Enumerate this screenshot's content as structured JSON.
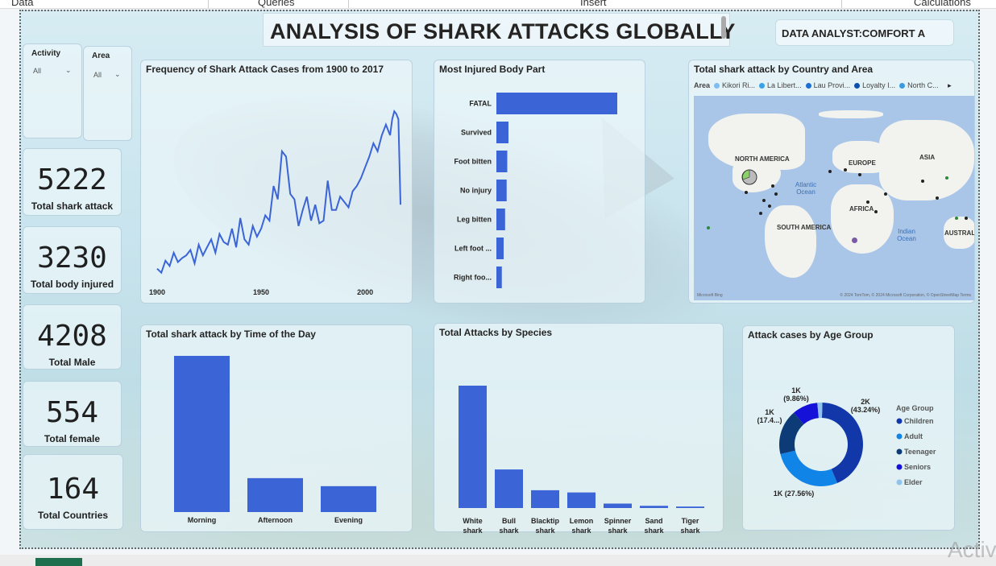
{
  "ribbon": {
    "items": [
      "Data",
      "Queries",
      "Insert",
      "Calculations"
    ]
  },
  "title": "ANALYSIS OF SHARK ATTACKS GLOBALLY",
  "analyst": "DATA ANALYST:COMFORT A",
  "slicers": [
    {
      "label": "Activity",
      "value": "All"
    },
    {
      "label": "Area",
      "value": "All"
    }
  ],
  "cards": [
    {
      "value": "5222",
      "label": "Total shark attack"
    },
    {
      "value": "3230",
      "label": "Total body injured"
    },
    {
      "value": "4208",
      "label": "Total Male"
    },
    {
      "value": "554",
      "label": "Total female"
    },
    {
      "value": "164",
      "label": "Total Countries"
    }
  ],
  "line_chart": {
    "title": "Frequency of Shark Attack Cases from 1900 to 2017"
  },
  "body_part_chart": {
    "title": "Most Injured Body Part"
  },
  "map_panel": {
    "title": "Total shark attack by Country and Area",
    "legend_title": "Area",
    "legend": [
      {
        "name": "Kikori Ri...",
        "color": "#7fbdf0"
      },
      {
        "name": "La Libert...",
        "color": "#3aa0e8"
      },
      {
        "name": "Lau Provi...",
        "color": "#1e6fd6"
      },
      {
        "name": "Loyalty I...",
        "color": "#0e4fb0"
      },
      {
        "name": "North C...",
        "color": "#3a9ae0"
      }
    ],
    "labels": {
      "na": "NORTH AMERICA",
      "eu": "EUROPE",
      "as": "ASIA",
      "af": "AFRICA",
      "sa": "SOUTH AMERICA",
      "au": "AUSTRAL",
      "atl": "Atlantic Ocean",
      "ind": "Indian Ocean"
    },
    "credit_left": "Microsoft Bing",
    "credit_right": "© 2024 TomTom, © 2024 Microsoft Corporation, © OpenStreetMap  Terms"
  },
  "time_chart": {
    "title": "Total shark attack by Time of the Day"
  },
  "species_chart": {
    "title": "Total Attacks by Species"
  },
  "age_chart": {
    "title": "Attack cases by Age Group"
  },
  "watermark": "Activ",
  "chart_data": [
    {
      "type": "line",
      "title": "Frequency of Shark Attack Cases from 1900 to 2017",
      "x_ticks": [
        "1900",
        "1950",
        "2000"
      ],
      "xlim": [
        1900,
        2017
      ],
      "ylim": [
        0,
        140
      ],
      "x": [
        1900,
        1902,
        1904,
        1906,
        1908,
        1910,
        1912,
        1914,
        1916,
        1918,
        1920,
        1922,
        1924,
        1926,
        1928,
        1930,
        1932,
        1934,
        1936,
        1938,
        1940,
        1942,
        1944,
        1946,
        1948,
        1950,
        1952,
        1954,
        1956,
        1958,
        1960,
        1962,
        1964,
        1966,
        1968,
        1970,
        1972,
        1974,
        1976,
        1978,
        1980,
        1982,
        1984,
        1986,
        1988,
        1990,
        1992,
        1994,
        1996,
        1998,
        2000,
        2002,
        2004,
        2006,
        2008,
        2010,
        2012,
        2013,
        2014,
        2015,
        2016,
        2017
      ],
      "values": [
        8,
        5,
        14,
        10,
        20,
        13,
        16,
        18,
        22,
        12,
        26,
        18,
        24,
        30,
        20,
        34,
        28,
        26,
        38,
        24,
        46,
        30,
        26,
        40,
        32,
        38,
        48,
        44,
        70,
        60,
        96,
        92,
        64,
        60,
        40,
        52,
        62,
        44,
        56,
        42,
        44,
        74,
        52,
        52,
        62,
        58,
        54,
        66,
        70,
        76,
        84,
        92,
        102,
        96,
        108,
        116,
        108,
        120,
        126,
        124,
        120,
        56
      ]
    },
    {
      "type": "bar",
      "orientation": "horizontal",
      "title": "Most Injured Body Part",
      "categories": [
        "FATAL",
        "Survived",
        "Foot bitten",
        "No injury",
        "Leg bitten",
        "Left foot ...",
        "Right foo..."
      ],
      "values": [
        1000,
        100,
        90,
        85,
        72,
        60,
        45
      ]
    },
    {
      "type": "bar",
      "title": "Total shark attack by Time of the Day",
      "categories": [
        "Morning",
        "Afternoon",
        "Evening"
      ],
      "values": [
        1750,
        380,
        290
      ]
    },
    {
      "type": "bar",
      "title": "Total Attacks by Species",
      "categories": [
        "White shark",
        "Bull shark",
        "Blacktip shark",
        "Lemon shark",
        "Spinner shark",
        "Sand shark",
        "Tiger shark"
      ],
      "values": [
        165,
        52,
        24,
        21,
        6,
        3,
        2
      ]
    },
    {
      "type": "pie",
      "donut": true,
      "title": "Attack cases by Age Group",
      "legend_title": "Age Group",
      "series": [
        {
          "name": "Children",
          "value": 43.24,
          "label": "2K",
          "pct": "(43.24%)",
          "color": "#1237a9"
        },
        {
          "name": "Adult",
          "value": 27.56,
          "label": "1K",
          "pct": "(27.56%)",
          "color": "#1184e8"
        },
        {
          "name": "Teenager",
          "value": 17.4,
          "label": "1K",
          "pct": "(17.4...)",
          "color": "#0c3b78"
        },
        {
          "name": "Seniors",
          "value": 9.86,
          "label": "1K",
          "pct": "(9.86%)",
          "color": "#1611d8"
        },
        {
          "name": "Elder",
          "value": 1.94,
          "color": "#8ec3ee"
        }
      ]
    }
  ]
}
